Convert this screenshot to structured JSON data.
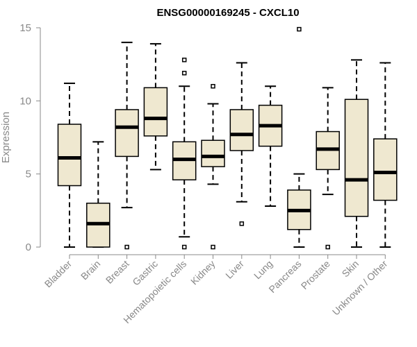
{
  "chart_data": {
    "type": "boxplot",
    "title": "ENSG00000169245 - CXCL10",
    "xlabel": "",
    "ylabel": "Expression",
    "ylim": [
      0,
      15
    ],
    "yticks": [
      0,
      5,
      10,
      15
    ],
    "box_fill": "#efe8d0",
    "box_stroke": "#000000",
    "axis_color": "#888888",
    "categories": [
      "Bladder",
      "Brain",
      "Breast",
      "Gastric",
      "Hematopoietic cells",
      "Kidney",
      "Liver",
      "Lung",
      "Pancreas",
      "Prostate",
      "Skin",
      "Unknown / Other"
    ],
    "boxes": [
      {
        "min": 0.0,
        "q1": 4.2,
        "median": 6.1,
        "q3": 8.4,
        "max": 11.2,
        "outliers": []
      },
      {
        "min": 0.0,
        "q1": 0.0,
        "median": 1.6,
        "q3": 3.0,
        "max": 7.2,
        "outliers": []
      },
      {
        "min": 2.7,
        "q1": 6.2,
        "median": 8.2,
        "q3": 9.4,
        "max": 14.0,
        "outliers": [
          0.0
        ]
      },
      {
        "min": 5.3,
        "q1": 7.6,
        "median": 8.8,
        "q3": 10.9,
        "max": 13.9,
        "outliers": []
      },
      {
        "min": 0.7,
        "q1": 4.6,
        "median": 6.0,
        "q3": 7.2,
        "max": 11.0,
        "outliers": [
          12.8,
          11.9,
          0.0
        ]
      },
      {
        "min": 4.3,
        "q1": 5.5,
        "median": 6.2,
        "q3": 7.3,
        "max": 9.8,
        "outliers": [
          11.0,
          0.0
        ]
      },
      {
        "min": 3.1,
        "q1": 6.6,
        "median": 7.7,
        "q3": 9.4,
        "max": 12.6,
        "outliers": [
          1.6
        ]
      },
      {
        "min": 2.8,
        "q1": 6.9,
        "median": 8.3,
        "q3": 9.7,
        "max": 11.0,
        "outliers": []
      },
      {
        "min": 0.0,
        "q1": 1.2,
        "median": 2.5,
        "q3": 3.9,
        "max": 5.0,
        "outliers": [
          14.9
        ]
      },
      {
        "min": 3.6,
        "q1": 5.3,
        "median": 6.7,
        "q3": 7.9,
        "max": 10.9,
        "outliers": [
          0.0
        ]
      },
      {
        "min": 0.0,
        "q1": 2.1,
        "median": 4.6,
        "q3": 10.1,
        "max": 12.8,
        "outliers": []
      },
      {
        "min": 0.0,
        "q1": 3.2,
        "median": 5.1,
        "q3": 7.4,
        "max": 12.6,
        "outliers": []
      }
    ]
  }
}
